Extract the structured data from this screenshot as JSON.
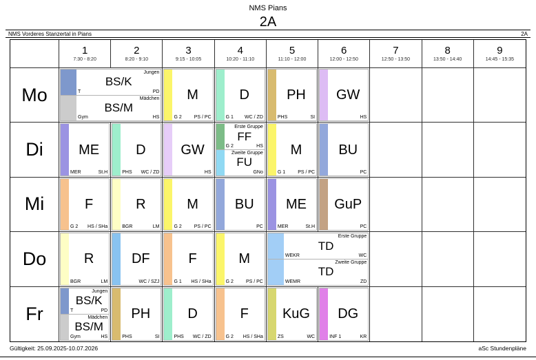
{
  "page": {
    "school_header": "NMS Pians",
    "class_title": "2A",
    "band_left": "NMS Vorderes Stanzertal in Pians",
    "band_right": "2A",
    "footer_left": "Gültigkeit: 25.09.2025-10.07.2026",
    "footer_right": "aSc Stundenpläne"
  },
  "periods": [
    {
      "num": "1",
      "time": "7:30 - 8:20"
    },
    {
      "num": "2",
      "time": "8:20 - 9:10"
    },
    {
      "num": "3",
      "time": "9:15 - 10:05"
    },
    {
      "num": "4",
      "time": "10:20 - 11:10"
    },
    {
      "num": "5",
      "time": "11:10 - 12:00"
    },
    {
      "num": "6",
      "time": "12:00 - 12:50"
    },
    {
      "num": "7",
      "time": "12:50 - 13:50"
    },
    {
      "num": "8",
      "time": "13:50 - 14:40"
    },
    {
      "num": "9",
      "time": "14:45 - 15:35"
    }
  ],
  "days": [
    {
      "label": "Mo",
      "cells": [
        {
          "span": 2,
          "parts": [
            {
              "group": "Jungen",
              "subject": "BS/K",
              "left": "T",
              "right": "PD",
              "color": "#7E98CC"
            },
            {
              "group": "Mädchen",
              "subject": "BS/M",
              "left": "Gym",
              "right": "HS",
              "color": "#CCCCCC"
            }
          ]
        },
        {
          "parts": [
            {
              "subject": "M",
              "left": "G 2",
              "right": "PS / PC",
              "color": "#FBF56A"
            }
          ]
        },
        {
          "parts": [
            {
              "subject": "D",
              "left": "G 1",
              "right": "WC / ZD",
              "color": "#9EEECC"
            }
          ]
        },
        {
          "parts": [
            {
              "subject": "PH",
              "left": "PHS",
              "right": "SI",
              "color": "#D8BB6F"
            }
          ]
        },
        {
          "parts": [
            {
              "subject": "GW",
              "right": "HS",
              "color": "#DDBCF4"
            }
          ]
        },
        {
          "empty": true
        },
        {
          "empty": true
        },
        {
          "empty": true
        }
      ]
    },
    {
      "label": "Di",
      "cells": [
        {
          "parts": [
            {
              "subject": "ME",
              "left": "MER",
              "right": "St.H",
              "color": "#9B93E2"
            }
          ]
        },
        {
          "parts": [
            {
              "subject": "D",
              "left": "PHS",
              "right": "WC / ZD",
              "color": "#9EEECC"
            }
          ]
        },
        {
          "parts": [
            {
              "subject": "GW",
              "right": "HS",
              "color": "#E6CDF8"
            }
          ]
        },
        {
          "parts": [
            {
              "group": "Erste Gruppe",
              "subject": "FF",
              "left": "G 2",
              "right": "HS",
              "color": "#7CBC87"
            },
            {
              "group": "Zweite Gruppe",
              "subject": "FU",
              "right": "GNo",
              "color": "#90D9F3"
            }
          ]
        },
        {
          "parts": [
            {
              "subject": "M",
              "left": "G 1",
              "right": "PS / PC",
              "color": "#FBF56A"
            }
          ]
        },
        {
          "parts": [
            {
              "subject": "BU",
              "right": "PC",
              "color": "#93A8DB"
            }
          ]
        },
        {
          "empty": true
        },
        {
          "empty": true
        },
        {
          "empty": true
        }
      ]
    },
    {
      "label": "Mi",
      "cells": [
        {
          "parts": [
            {
              "subject": "F",
              "left": "G 2",
              "right": "HS / SHa",
              "color": "#F7C28E"
            }
          ]
        },
        {
          "parts": [
            {
              "subject": "R",
              "left": "BGR",
              "right": "LM",
              "color": "#FEFEC5"
            }
          ]
        },
        {
          "parts": [
            {
              "subject": "M",
              "left": "G 2",
              "right": "PS / PC",
              "color": "#FBF56A"
            }
          ]
        },
        {
          "parts": [
            {
              "subject": "BU",
              "right": "PC",
              "color": "#93A8DB"
            }
          ]
        },
        {
          "parts": [
            {
              "subject": "ME",
              "left": "MER",
              "right": "St.H",
              "color": "#9B93E2"
            }
          ]
        },
        {
          "parts": [
            {
              "subject": "GuP",
              "right": "PC",
              "color": "#C3A284"
            }
          ]
        },
        {
          "empty": true
        },
        {
          "empty": true
        },
        {
          "empty": true
        }
      ]
    },
    {
      "label": "Do",
      "cells": [
        {
          "parts": [
            {
              "subject": "R",
              "left": "BGR",
              "right": "LM",
              "color": "#FEFEC5"
            }
          ]
        },
        {
          "parts": [
            {
              "subject": "DF",
              "right": "WC / SZJ",
              "color": "#89C3F0"
            }
          ]
        },
        {
          "parts": [
            {
              "subject": "F",
              "left": "G 1",
              "right": "HS / SHa",
              "color": "#F7C28E"
            }
          ]
        },
        {
          "parts": [
            {
              "subject": "M",
              "left": "G 2",
              "right": "PS / PC",
              "color": "#FBF56A"
            }
          ]
        },
        {
          "span": 2,
          "parts": [
            {
              "group": "Erste Gruppe",
              "subject": "TD",
              "left": "WEKR",
              "right": "WC",
              "color": "#A2CEF6"
            },
            {
              "group": "Zweite Gruppe",
              "subject": "TD",
              "left": "WEMR",
              "right": "ZD",
              "color": "#A2CEF6"
            }
          ]
        },
        {
          "empty": true
        },
        {
          "empty": true
        },
        {
          "empty": true
        }
      ]
    },
    {
      "label": "Fr",
      "cells": [
        {
          "parts": [
            {
              "group": "Jungen",
              "subject": "BS/K",
              "left": "T",
              "right": "PD",
              "color": "#7E98CC"
            },
            {
              "group": "Mädchen",
              "subject": "BS/M",
              "left": "Gym",
              "right": "HS",
              "color": "#CCCCCC"
            }
          ]
        },
        {
          "parts": [
            {
              "subject": "PH",
              "left": "PHS",
              "right": "SI",
              "color": "#D8BB6F"
            }
          ]
        },
        {
          "parts": [
            {
              "subject": "D",
              "left": "PHS",
              "right": "WC / ZD",
              "color": "#9EEECC"
            }
          ]
        },
        {
          "parts": [
            {
              "subject": "F",
              "left": "G 2",
              "right": "HS / SHa",
              "color": "#F7C28E"
            }
          ]
        },
        {
          "parts": [
            {
              "subject": "KuG",
              "left": "ZS",
              "right": "WC",
              "color": "#D7D76F"
            }
          ]
        },
        {
          "parts": [
            {
              "subject": "DG",
              "left": "INF 1",
              "right": "KR",
              "color": "#E081E8"
            }
          ]
        },
        {
          "empty": true
        },
        {
          "empty": true
        },
        {
          "empty": true
        }
      ]
    }
  ]
}
